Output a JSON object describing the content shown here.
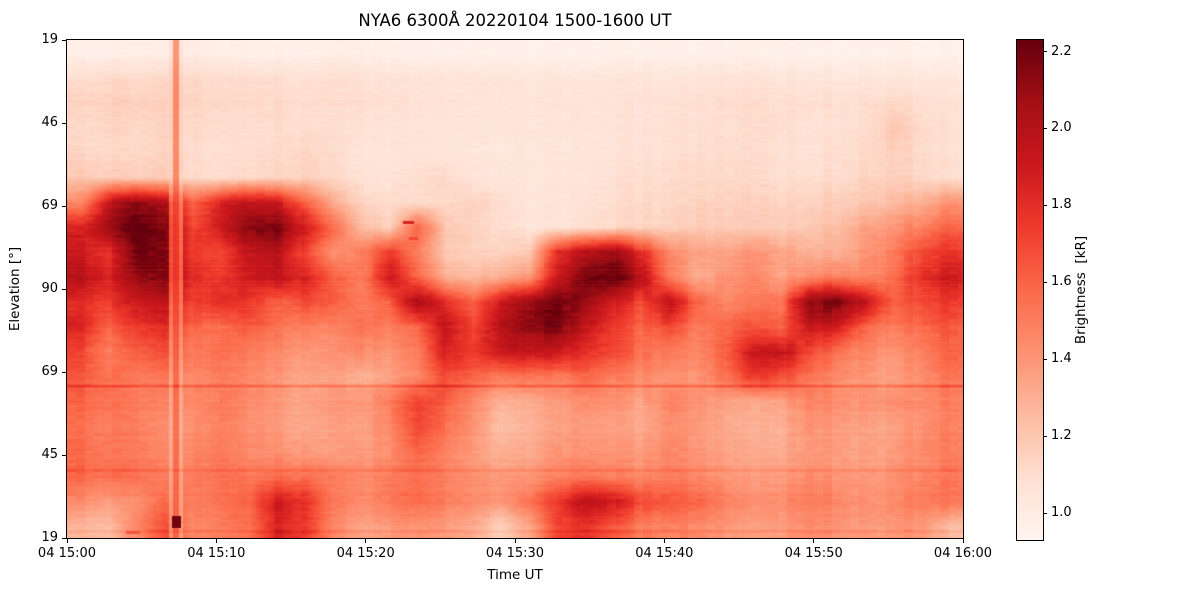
{
  "chart_data": {
    "type": "heatmap",
    "title": "NYA6 6300Å 20220104 1500-1600 UT",
    "xlabel": "Time UT",
    "ylabel": "Elevation [°]",
    "x_tick_labels": [
      "04 15:00",
      "04 15:10",
      "04 15:20",
      "04 15:30",
      "04 15:40",
      "04 15:50",
      "04 16:00"
    ],
    "y_tick_labels": [
      "19",
      "46",
      "69",
      "90",
      "69",
      "45",
      "19"
    ],
    "time_span_minutes": [
      0,
      60
    ],
    "colorbar": {
      "label": "Brightness  [kR]",
      "ticks": [
        2.2,
        2.0,
        1.8,
        1.6,
        1.4,
        1.2,
        1.0
      ],
      "vmin": 0.93,
      "vmax": 2.23,
      "colormap": "Reds",
      "units": "kR"
    },
    "grid": {
      "n_time_cols": 32,
      "n_elev_rows": 20,
      "orientation": "rows top(N 19°) to bottom(S 19°), cols 15:00 to 16:00, values in kR",
      "values": [
        [
          0.97,
          0.97,
          0.97,
          1.0,
          1.0,
          0.97,
          0.97,
          0.97,
          0.97,
          0.97,
          0.98,
          0.97,
          0.96,
          0.96,
          0.96,
          0.96,
          0.96,
          0.96,
          0.96,
          0.96,
          0.96,
          0.96,
          0.96,
          0.96,
          0.96,
          0.96,
          0.96,
          0.96,
          0.96,
          0.96,
          0.96,
          0.96
        ],
        [
          1.1,
          1.12,
          1.1,
          1.15,
          1.12,
          1.1,
          1.1,
          1.1,
          1.08,
          1.08,
          1.08,
          1.06,
          1.06,
          1.05,
          1.05,
          1.05,
          1.04,
          1.04,
          1.05,
          1.05,
          1.05,
          1.04,
          1.05,
          1.06,
          1.06,
          1.05,
          1.05,
          1.04,
          1.04,
          1.05,
          1.04,
          1.03
        ],
        [
          1.15,
          1.16,
          1.15,
          1.18,
          1.14,
          1.12,
          1.12,
          1.12,
          1.1,
          1.1,
          1.1,
          1.08,
          1.08,
          1.06,
          1.06,
          1.05,
          1.05,
          1.06,
          1.06,
          1.07,
          1.08,
          1.08,
          1.09,
          1.1,
          1.1,
          1.1,
          1.1,
          1.1,
          1.1,
          1.12,
          1.1,
          1.08
        ],
        [
          1.12,
          1.14,
          1.12,
          1.16,
          1.12,
          1.1,
          1.1,
          1.1,
          1.1,
          1.08,
          1.08,
          1.06,
          1.06,
          1.05,
          1.05,
          1.04,
          1.05,
          1.05,
          1.06,
          1.06,
          1.07,
          1.08,
          1.08,
          1.09,
          1.1,
          1.1,
          1.08,
          1.08,
          1.1,
          1.2,
          1.12,
          1.08
        ],
        [
          1.14,
          1.12,
          1.12,
          1.16,
          1.1,
          1.08,
          1.1,
          1.12,
          1.14,
          1.1,
          1.06,
          1.05,
          1.06,
          1.05,
          1.04,
          1.03,
          1.04,
          1.04,
          1.05,
          1.06,
          1.08,
          1.08,
          1.1,
          1.1,
          1.1,
          1.08,
          1.08,
          1.1,
          1.12,
          1.16,
          1.12,
          1.08
        ],
        [
          1.2,
          1.18,
          1.16,
          1.2,
          1.12,
          1.1,
          1.12,
          1.14,
          1.16,
          1.12,
          1.08,
          1.06,
          1.1,
          1.12,
          1.06,
          1.04,
          1.04,
          1.05,
          1.06,
          1.08,
          1.1,
          1.1,
          1.12,
          1.12,
          1.12,
          1.1,
          1.1,
          1.12,
          1.14,
          1.16,
          1.14,
          1.1
        ],
        [
          1.45,
          1.95,
          2.1,
          2.05,
          1.6,
          1.85,
          1.95,
          1.9,
          1.6,
          1.3,
          1.15,
          1.1,
          1.1,
          1.12,
          1.15,
          1.1,
          1.05,
          1.05,
          1.08,
          1.1,
          1.12,
          1.12,
          1.15,
          1.15,
          1.15,
          1.15,
          1.15,
          1.18,
          1.2,
          1.25,
          1.3,
          1.4
        ],
        [
          1.85,
          2.1,
          2.25,
          2.2,
          1.7,
          1.9,
          2.15,
          2.2,
          1.9,
          1.55,
          1.25,
          1.15,
          1.6,
          1.2,
          1.15,
          1.1,
          1.06,
          1.06,
          1.1,
          1.12,
          1.15,
          1.15,
          1.18,
          1.18,
          1.18,
          1.18,
          1.2,
          1.25,
          1.35,
          1.4,
          1.5,
          1.6
        ],
        [
          1.9,
          1.8,
          2.2,
          2.2,
          1.75,
          1.7,
          1.95,
          2.0,
          1.7,
          1.4,
          1.5,
          1.75,
          1.5,
          1.2,
          1.15,
          1.15,
          1.2,
          1.8,
          2.0,
          2.1,
          1.8,
          1.45,
          1.35,
          1.35,
          1.4,
          1.35,
          1.3,
          1.3,
          1.4,
          1.5,
          1.7,
          1.78
        ],
        [
          2.0,
          1.85,
          2.1,
          2.2,
          1.8,
          1.75,
          1.9,
          1.95,
          1.85,
          1.6,
          1.5,
          1.9,
          1.6,
          1.3,
          1.25,
          1.3,
          1.4,
          1.9,
          2.2,
          2.25,
          2.0,
          1.5,
          1.3,
          1.4,
          1.45,
          1.35,
          1.45,
          1.5,
          1.45,
          1.55,
          1.8,
          1.9
        ],
        [
          1.8,
          1.75,
          1.9,
          2.0,
          1.7,
          1.8,
          1.75,
          1.6,
          1.7,
          1.6,
          1.5,
          1.6,
          2.05,
          1.8,
          1.6,
          1.9,
          2.1,
          2.2,
          2.1,
          1.9,
          1.7,
          1.95,
          1.6,
          1.45,
          1.5,
          1.55,
          2.15,
          2.2,
          1.95,
          1.6,
          1.7,
          1.75
        ],
        [
          1.85,
          1.6,
          1.75,
          1.85,
          1.6,
          1.55,
          1.65,
          1.55,
          1.5,
          1.45,
          1.55,
          1.5,
          1.6,
          1.95,
          1.7,
          2.0,
          2.15,
          2.2,
          1.95,
          1.75,
          1.6,
          1.7,
          1.5,
          1.6,
          1.65,
          1.6,
          1.95,
          1.9,
          1.6,
          1.5,
          1.6,
          1.65
        ],
        [
          1.7,
          1.5,
          1.6,
          1.7,
          1.5,
          1.55,
          1.5,
          1.45,
          1.4,
          1.4,
          1.45,
          1.4,
          1.5,
          1.85,
          1.75,
          1.9,
          1.95,
          1.9,
          1.8,
          1.7,
          1.55,
          1.5,
          1.45,
          1.6,
          1.9,
          1.95,
          1.7,
          1.55,
          1.45,
          1.4,
          1.5,
          1.6
        ],
        [
          1.65,
          1.55,
          1.5,
          1.55,
          1.45,
          1.5,
          1.45,
          1.4,
          1.35,
          1.35,
          1.3,
          1.35,
          1.45,
          1.7,
          1.6,
          1.5,
          1.55,
          1.5,
          1.6,
          1.5,
          1.45,
          1.4,
          1.4,
          1.55,
          1.75,
          1.7,
          1.55,
          1.45,
          1.4,
          1.35,
          1.45,
          1.55
        ],
        [
          1.6,
          1.55,
          1.5,
          1.5,
          1.45,
          1.5,
          1.45,
          1.4,
          1.35,
          1.38,
          1.4,
          1.5,
          1.72,
          1.62,
          1.45,
          1.28,
          1.32,
          1.38,
          1.45,
          1.42,
          1.35,
          1.48,
          1.42,
          1.35,
          1.32,
          1.35,
          1.48,
          1.45,
          1.4,
          1.42,
          1.45,
          1.5
        ],
        [
          1.55,
          1.5,
          1.48,
          1.45,
          1.42,
          1.48,
          1.42,
          1.38,
          1.32,
          1.35,
          1.35,
          1.45,
          1.7,
          1.55,
          1.4,
          1.22,
          1.28,
          1.35,
          1.38,
          1.35,
          1.32,
          1.42,
          1.38,
          1.32,
          1.28,
          1.3,
          1.42,
          1.38,
          1.35,
          1.35,
          1.42,
          1.48
        ],
        [
          1.58,
          1.52,
          1.5,
          1.48,
          1.45,
          1.5,
          1.45,
          1.42,
          1.38,
          1.35,
          1.38,
          1.42,
          1.6,
          1.48,
          1.38,
          1.28,
          1.32,
          1.4,
          1.42,
          1.4,
          1.38,
          1.45,
          1.4,
          1.35,
          1.3,
          1.32,
          1.4,
          1.38,
          1.35,
          1.38,
          1.45,
          1.5
        ],
        [
          1.6,
          1.55,
          1.55,
          1.52,
          1.5,
          1.55,
          1.52,
          1.55,
          1.55,
          1.48,
          1.45,
          1.5,
          1.55,
          1.48,
          1.42,
          1.38,
          1.4,
          1.48,
          1.52,
          1.48,
          1.45,
          1.5,
          1.45,
          1.4,
          1.35,
          1.38,
          1.45,
          1.42,
          1.38,
          1.4,
          1.48,
          1.52
        ],
        [
          1.45,
          1.38,
          1.42,
          1.6,
          1.5,
          1.55,
          1.6,
          1.9,
          1.8,
          1.5,
          1.45,
          1.52,
          1.58,
          1.5,
          1.45,
          1.4,
          1.55,
          1.75,
          2.0,
          1.9,
          1.7,
          1.65,
          1.6,
          1.5,
          1.42,
          1.45,
          1.52,
          1.48,
          1.42,
          1.45,
          1.52,
          1.55
        ],
        [
          1.28,
          1.25,
          1.45,
          1.7,
          1.45,
          1.5,
          1.55,
          1.85,
          1.75,
          1.45,
          1.35,
          1.38,
          1.42,
          1.38,
          1.32,
          1.15,
          1.35,
          1.7,
          1.8,
          1.65,
          1.5,
          1.48,
          1.45,
          1.4,
          1.35,
          1.38,
          1.45,
          1.42,
          1.38,
          1.4,
          1.42,
          1.25
        ]
      ]
    },
    "artifacts": {
      "vertical_stripe": {
        "t_min": 6.83,
        "t_max": 7.7,
        "core_t_min": 7.13,
        "core_t_max": 7.43
      },
      "stripe_bottom_blip": {
        "t_min": 7.0,
        "t_max": 7.55,
        "y_frac_min": 0.956,
        "y_frac_max": 0.978,
        "value": 2.2
      },
      "h_lines": [
        {
          "y_frac": 0.694,
          "strength": 0.2
        },
        {
          "y_frac": 0.863,
          "strength": 0.11
        },
        {
          "y_frac": 0.986,
          "strength": 0.07
        }
      ],
      "dashes": [
        {
          "t_min": 22.5,
          "t_max": 23.17,
          "y_frac": 0.365,
          "value": 1.85
        },
        {
          "t_min": 22.9,
          "t_max": 23.44,
          "y_frac": 0.398,
          "value": 1.7
        },
        {
          "t_min": 3.95,
          "t_max": 4.82,
          "y_frac": 0.988,
          "value": 1.65
        }
      ]
    }
  }
}
